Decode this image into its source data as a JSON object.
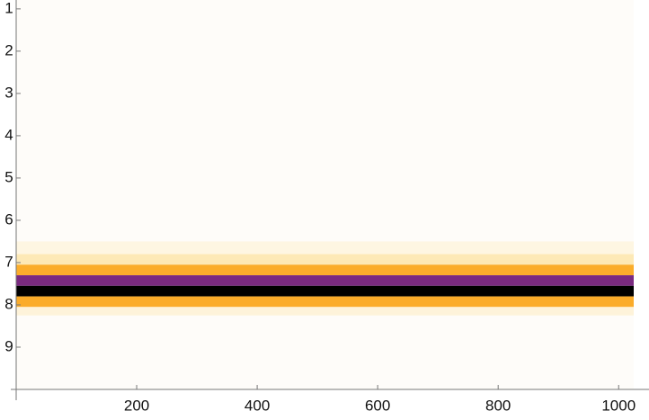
{
  "chart_data": {
    "type": "bands",
    "xlim": [
      0,
      1025
    ],
    "xticks": [
      200,
      400,
      600,
      800,
      1000
    ],
    "ylim": [
      0.79,
      10
    ],
    "y_reversed": true,
    "yticks": [
      1,
      2,
      3,
      4,
      5,
      6,
      7,
      8,
      9
    ],
    "background": "#fefcf9",
    "bands": [
      {
        "from": 6.5,
        "to": 6.8,
        "color": "#fef6e2"
      },
      {
        "from": 6.8,
        "to": 7.05,
        "color": "#fde9b6"
      },
      {
        "from": 7.05,
        "to": 7.3,
        "color": "#fbad2b"
      },
      {
        "from": 7.3,
        "to": 7.55,
        "color": "#7a2a80"
      },
      {
        "from": 7.55,
        "to": 7.8,
        "color": "#000000"
      },
      {
        "from": 7.8,
        "to": 8.05,
        "color": "#fbac2a"
      },
      {
        "from": 8.05,
        "to": 8.25,
        "color": "#fef3da"
      }
    ]
  }
}
